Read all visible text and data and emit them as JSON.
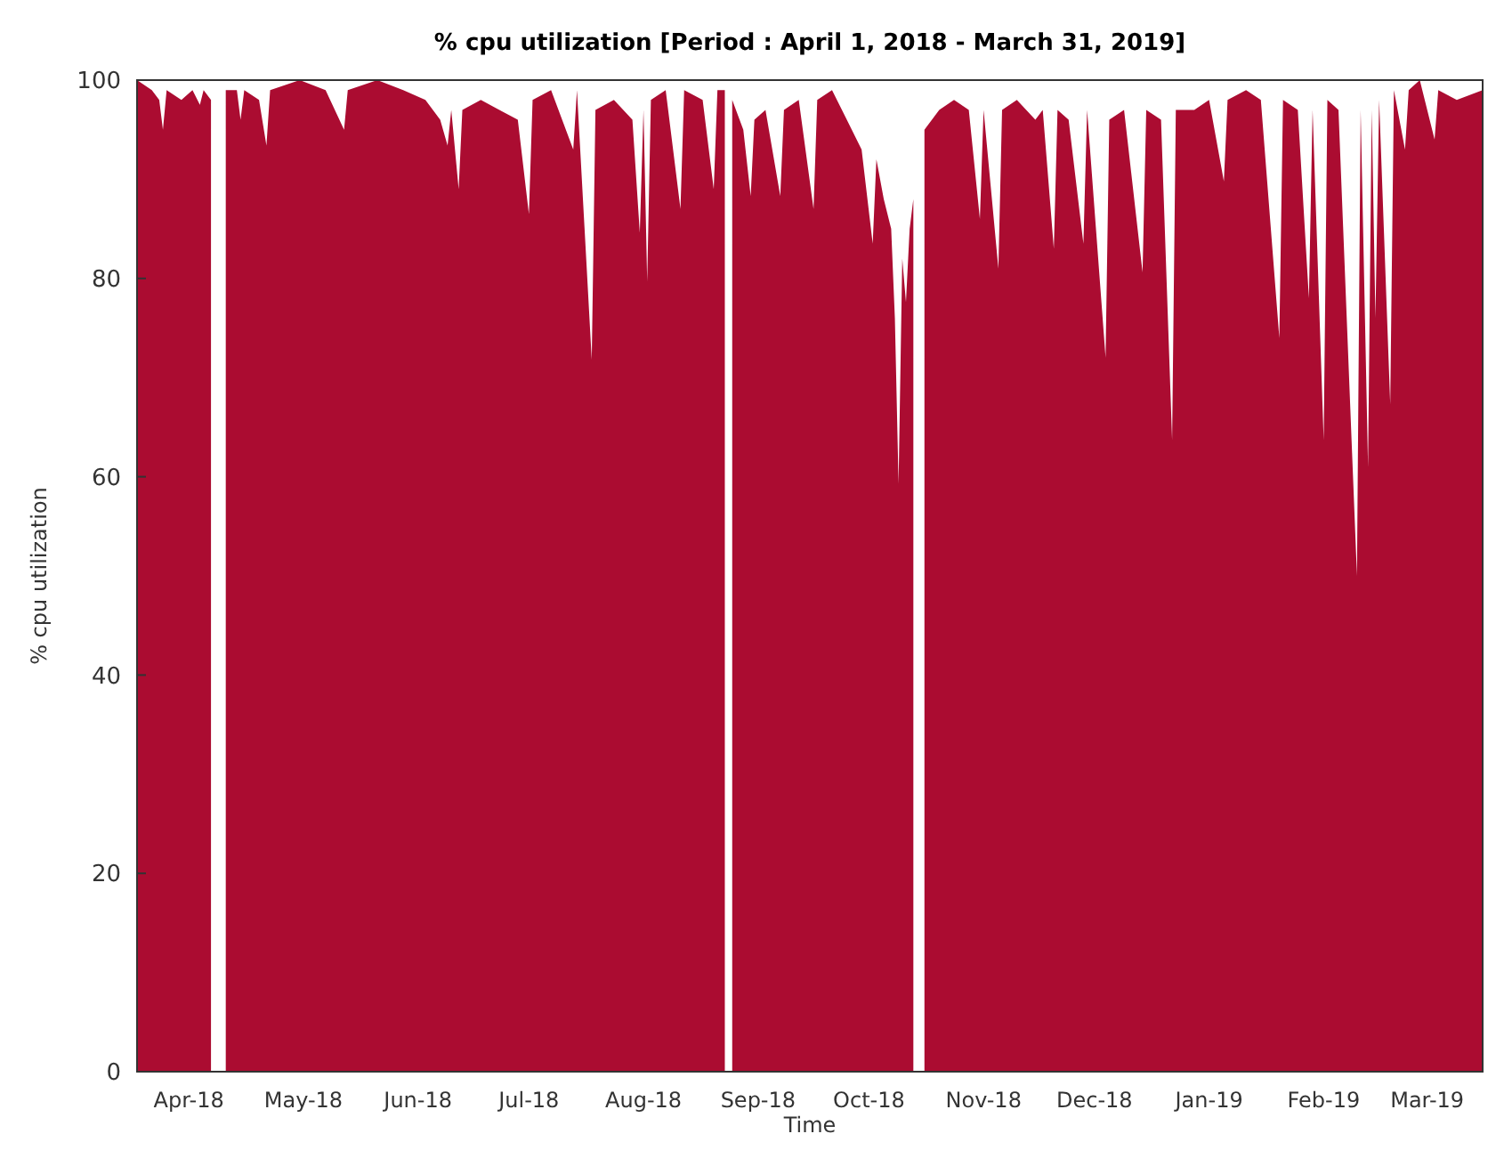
{
  "chart_data": {
    "type": "area",
    "title": "% cpu utilization [Period : April 1, 2018 - March 31, 2019]",
    "xlabel": "Time",
    "ylabel": "% cpu utilization",
    "xlim": [
      "2018-04-01",
      "2019-03-31"
    ],
    "xticks": [
      {
        "value": "2018-04-15",
        "label": "Apr-18"
      },
      {
        "value": "2018-05-16",
        "label": "May-18"
      },
      {
        "value": "2018-06-16",
        "label": "Jun-18"
      },
      {
        "value": "2018-07-16",
        "label": "Jul-18"
      },
      {
        "value": "2018-08-16",
        "label": "Aug-18"
      },
      {
        "value": "2018-09-16",
        "label": "Sep-18"
      },
      {
        "value": "2018-10-16",
        "label": "Oct-18"
      },
      {
        "value": "2018-11-16",
        "label": "Nov-18"
      },
      {
        "value": "2018-12-16",
        "label": "Dec-18"
      },
      {
        "value": "2019-01-16",
        "label": "Jan-19"
      },
      {
        "value": "2019-02-16",
        "label": "Feb-19"
      },
      {
        "value": "2019-03-16",
        "label": "Mar-19"
      }
    ],
    "ylim": [
      0,
      100
    ],
    "yticks": [
      0,
      20,
      40,
      60,
      80,
      100
    ],
    "series": [
      {
        "color": "#ab0c31",
        "x": [
          "2018-04-01",
          "2018-04-05",
          "2018-04-07",
          "2018-04-08",
          "2018-04-09",
          "2018-04-13",
          "2018-04-16",
          "2018-04-18",
          "2018-04-19",
          "2018-04-21",
          "2018-04-22",
          "2018-04-25",
          "2018-04-28",
          "2018-04-29",
          "2018-04-30",
          "2018-05-04",
          "2018-05-06",
          "2018-05-07",
          "2018-05-15",
          "2018-05-22",
          "2018-05-27",
          "2018-05-28",
          "2018-06-05",
          "2018-06-12",
          "2018-06-18",
          "2018-06-22",
          "2018-06-24",
          "2018-06-25",
          "2018-06-27",
          "2018-06-28",
          "2018-07-03",
          "2018-07-08",
          "2018-07-13",
          "2018-07-16",
          "2018-07-17",
          "2018-07-22",
          "2018-07-28",
          "2018-07-29",
          "2018-08-02",
          "2018-08-03",
          "2018-08-08",
          "2018-08-13",
          "2018-08-15",
          "2018-08-16",
          "2018-08-17",
          "2018-08-18",
          "2018-08-22",
          "2018-08-26",
          "2018-08-27",
          "2018-09-01",
          "2018-09-04",
          "2018-09-05",
          "2018-09-07",
          "2018-09-08",
          "2018-09-09",
          "2018-09-12",
          "2018-09-14",
          "2018-09-15",
          "2018-09-18",
          "2018-09-22",
          "2018-09-23",
          "2018-09-27",
          "2018-10-01",
          "2018-10-02",
          "2018-10-06",
          "2018-10-10",
          "2018-10-14",
          "2018-10-17",
          "2018-10-18",
          "2018-10-20",
          "2018-10-22",
          "2018-10-23",
          "2018-10-24",
          "2018-10-25",
          "2018-10-26",
          "2018-10-27",
          "2018-10-28",
          "2018-10-29",
          "2018-10-31",
          "2018-11-04",
          "2018-11-08",
          "2018-11-12",
          "2018-11-15",
          "2018-11-16",
          "2018-11-20",
          "2018-11-21",
          "2018-11-25",
          "2018-11-30",
          "2018-12-02",
          "2018-12-05",
          "2018-12-06",
          "2018-12-09",
          "2018-12-13",
          "2018-12-14",
          "2018-12-19",
          "2018-12-20",
          "2018-12-24",
          "2018-12-29",
          "2018-12-30",
          "2019-01-03",
          "2019-01-06",
          "2019-01-07",
          "2019-01-12",
          "2019-01-16",
          "2019-01-20",
          "2019-01-21",
          "2019-01-26",
          "2019-01-30",
          "2019-02-04",
          "2019-02-05",
          "2019-02-09",
          "2019-02-12",
          "2019-02-13",
          "2019-02-16",
          "2019-02-17",
          "2019-02-20",
          "2019-02-25",
          "2019-02-26",
          "2019-02-28",
          "2019-03-01",
          "2019-03-02",
          "2019-03-03",
          "2019-03-06",
          "2019-03-07",
          "2019-03-10",
          "2019-03-11",
          "2019-03-14",
          "2019-03-18",
          "2019-03-19",
          "2019-03-24",
          "2019-03-31"
        ],
        "values": [
          100,
          99,
          98,
          95,
          99,
          98,
          99,
          97.5,
          99,
          98,
          null,
          99,
          99,
          96,
          99,
          98,
          93.4,
          99,
          100,
          99,
          95,
          99,
          100,
          99,
          98,
          96,
          93.4,
          97,
          89,
          97,
          98,
          97,
          96,
          86.5,
          98,
          99,
          93,
          99,
          71.8,
          97,
          98,
          96,
          84.6,
          97,
          79.7,
          98,
          99,
          87,
          99,
          98,
          89,
          99,
          99,
          null,
          98,
          95,
          88.3,
          96,
          97,
          88.3,
          97,
          98,
          87,
          98,
          99,
          96,
          93,
          83.5,
          92,
          88,
          85,
          76,
          59.3,
          82,
          77.6,
          85,
          88,
          null,
          95,
          97,
          98,
          97,
          86,
          97,
          81,
          97,
          98,
          96,
          97,
          83,
          97,
          96,
          83.5,
          97,
          72,
          96,
          97,
          80.6,
          97,
          96,
          63.7,
          97,
          97,
          98,
          89.8,
          98,
          99,
          98,
          74,
          98,
          97,
          78,
          97,
          63.7,
          98,
          97,
          50,
          97,
          61,
          97,
          76,
          98,
          67.3,
          99,
          93,
          99,
          100,
          94,
          99,
          98,
          99
        ]
      }
    ]
  }
}
